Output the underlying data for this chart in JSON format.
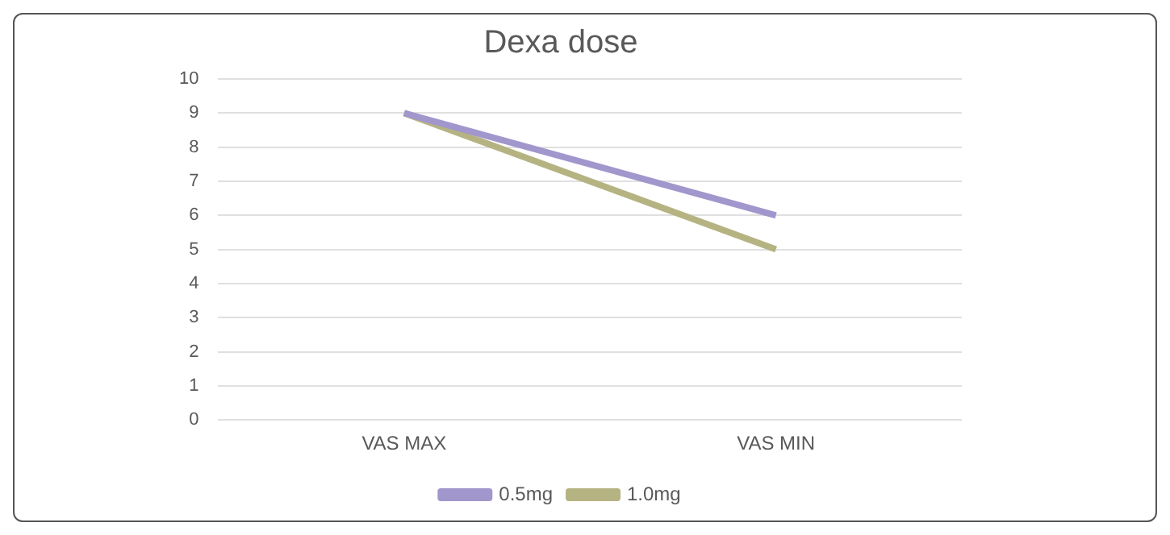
{
  "chart_data": {
    "type": "line",
    "title": "Dexa dose",
    "categories": [
      "VAS MAX",
      "VAS MIN"
    ],
    "series": [
      {
        "name": "0.5mg",
        "color": "#a197cc",
        "values": [
          9,
          6
        ]
      },
      {
        "name": "1.0mg",
        "color": "#b5b382",
        "values": [
          9,
          5
        ]
      }
    ],
    "ylim": [
      0,
      10
    ],
    "yticks": [
      0,
      1,
      2,
      3,
      4,
      5,
      6,
      7,
      8,
      9,
      10
    ],
    "grid": "y",
    "legend": "bottom",
    "marker": "none"
  }
}
